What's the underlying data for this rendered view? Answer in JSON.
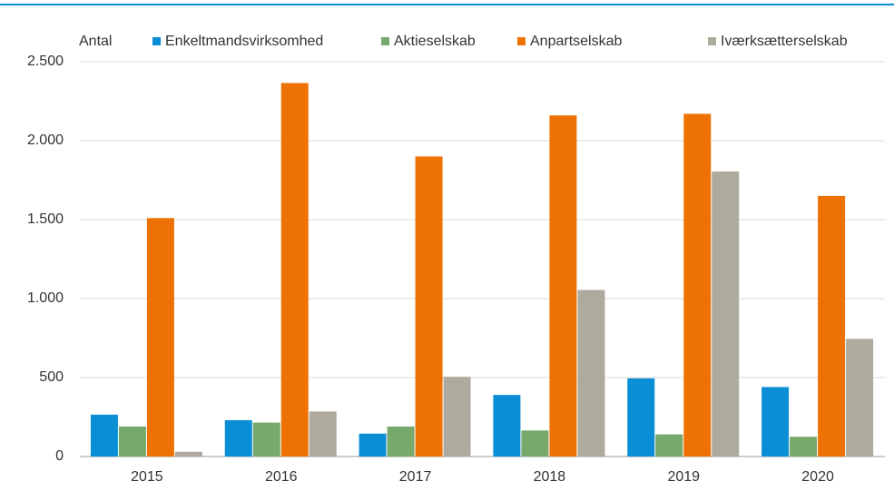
{
  "chart_data": {
    "type": "bar",
    "y_label": "Antal",
    "categories": [
      "2015",
      "2016",
      "2017",
      "2018",
      "2019",
      "2020"
    ],
    "series": [
      {
        "name": "Enkeltmandsvirksomhed",
        "color": "#0a8fd6",
        "values": [
          265,
          230,
          145,
          390,
          495,
          440
        ]
      },
      {
        "name": "Aktieselskab",
        "color": "#77a86c",
        "values": [
          190,
          215,
          190,
          165,
          140,
          125
        ]
      },
      {
        "name": "Anpartselskab",
        "color": "#ee7203",
        "values": [
          1510,
          2365,
          1900,
          2160,
          2170,
          1650
        ]
      },
      {
        "name": "Iværksætterselskab",
        "color": "#aeab9e",
        "values": [
          30,
          285,
          505,
          1055,
          1805,
          745
        ]
      }
    ],
    "ylim": [
      0,
      2500
    ],
    "yticks": [
      0,
      500,
      {
        "value": 1000,
        "label": "1.000"
      },
      {
        "value": 1500,
        "label": "1.500"
      },
      {
        "value": 2000,
        "label": "2.000"
      },
      {
        "value": 2500,
        "label": "2.500"
      }
    ],
    "grid": true
  }
}
